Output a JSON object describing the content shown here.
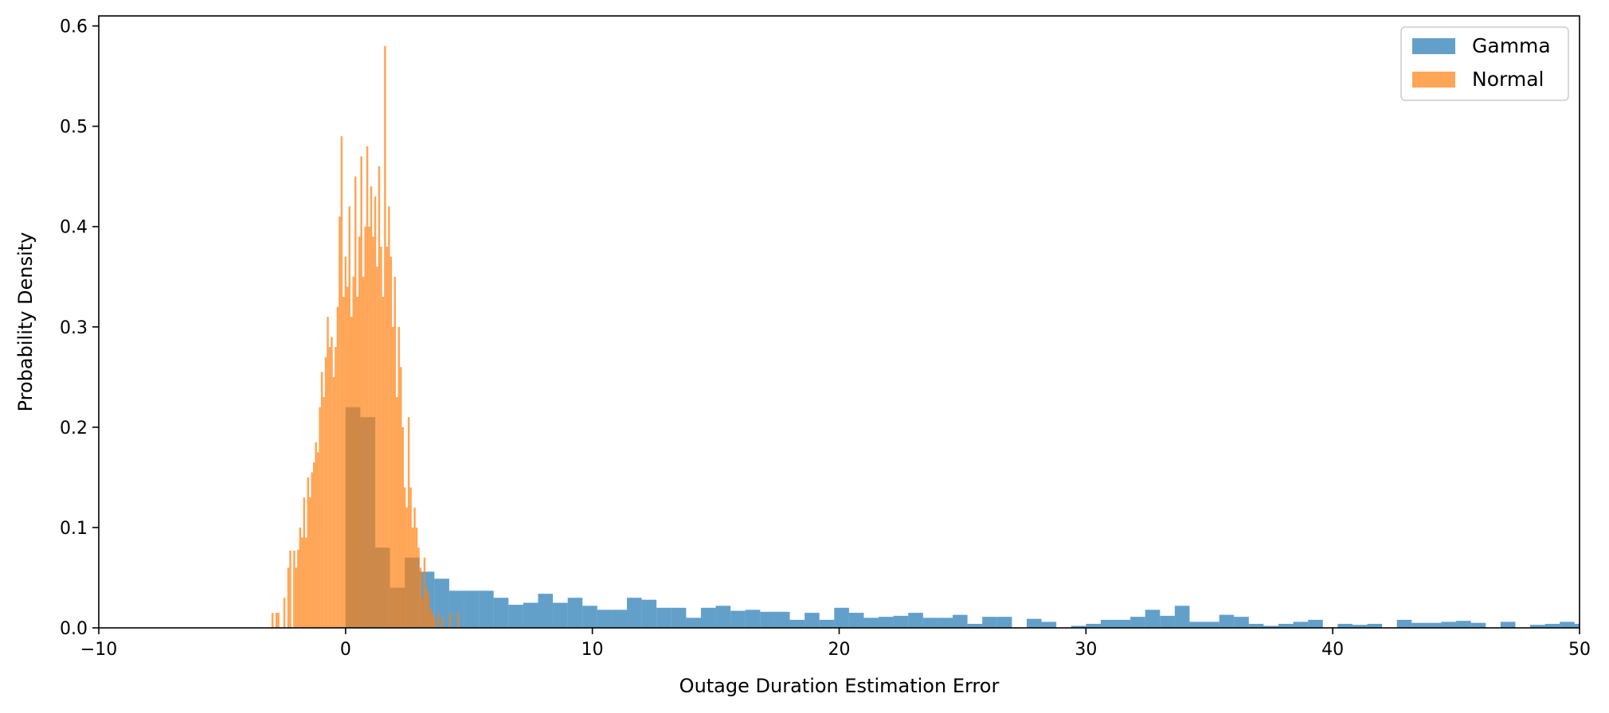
{
  "chart_data": {
    "type": "bar",
    "title": "",
    "xlabel": "Outage Duration Estimation Error",
    "ylabel": "Probability Density",
    "xlim": [
      -10,
      50
    ],
    "ylim": [
      0,
      0.61
    ],
    "xticks": [
      -10,
      0,
      10,
      20,
      30,
      40,
      50
    ],
    "xtick_labels": [
      "−10",
      "0",
      "10",
      "20",
      "30",
      "40",
      "50"
    ],
    "yticks": [
      0.0,
      0.1,
      0.2,
      0.3,
      0.4,
      0.5,
      0.6
    ],
    "ytick_labels": [
      "0.0",
      "0.1",
      "0.2",
      "0.3",
      "0.4",
      "0.5",
      "0.6"
    ],
    "grid": false,
    "legend_position": "top-right",
    "series": [
      {
        "name": "Gamma",
        "color": "#1f77b4",
        "opacity": 0.7,
        "bin_start": 0,
        "bin_width": 0.6,
        "values": [
          0.22,
          0.21,
          0.08,
          0.04,
          0.07,
          0.056,
          0.049,
          0.037,
          0.037,
          0.037,
          0.03,
          0.023,
          0.025,
          0.034,
          0.025,
          0.03,
          0.022,
          0.018,
          0.018,
          0.03,
          0.028,
          0.02,
          0.02,
          0.01,
          0.02,
          0.022,
          0.017,
          0.018,
          0.016,
          0.016,
          0.008,
          0.015,
          0.008,
          0.02,
          0.015,
          0.01,
          0.011,
          0.012,
          0.015,
          0.01,
          0.01,
          0.013,
          0.004,
          0.011,
          0.011,
          0.0,
          0.009,
          0.006,
          0.0,
          0.002,
          0.004,
          0.008,
          0.008,
          0.011,
          0.018,
          0.012,
          0.022,
          0.006,
          0.006,
          0.013,
          0.011,
          0.004,
          0.002,
          0.004,
          0.006,
          0.008,
          0.0,
          0.004,
          0.003,
          0.004,
          0.0,
          0.008,
          0.005,
          0.005,
          0.006,
          0.007,
          0.005,
          0.0,
          0.006,
          0.0,
          0.003,
          0.004,
          0.006,
          0.004,
          0.009,
          0.005,
          0.002,
          0.0,
          0.009,
          0.0,
          0.0
        ]
      },
      {
        "name": "Normal",
        "color": "#ff7f0e",
        "opacity": 0.7,
        "bin_start": -3.0,
        "bin_width": 0.08,
        "values": [
          0.015,
          0.0,
          0.015,
          0.015,
          0.0,
          0.0,
          0.03,
          0.0,
          0.06,
          0.077,
          0.0,
          0.077,
          0.06,
          0.078,
          0.1,
          0.09,
          0.13,
          0.09,
          0.15,
          0.13,
          0.155,
          0.165,
          0.185,
          0.175,
          0.22,
          0.255,
          0.23,
          0.27,
          0.31,
          0.28,
          0.29,
          0.25,
          0.28,
          0.32,
          0.41,
          0.49,
          0.33,
          0.37,
          0.34,
          0.42,
          0.31,
          0.35,
          0.45,
          0.33,
          0.39,
          0.47,
          0.35,
          0.4,
          0.48,
          0.4,
          0.44,
          0.39,
          0.43,
          0.36,
          0.46,
          0.38,
          0.33,
          0.58,
          0.38,
          0.42,
          0.37,
          0.3,
          0.35,
          0.23,
          0.3,
          0.26,
          0.2,
          0.14,
          0.12,
          0.21,
          0.14,
          0.1,
          0.12,
          0.1,
          0.08,
          0.06,
          0.03,
          0.07,
          0.04,
          0.035,
          0.02,
          0.015,
          0.01,
          0.0,
          0.015,
          0.0,
          0.01,
          0.0,
          0.0,
          0.0,
          0.015,
          0.0,
          0.0,
          0.0,
          0.015
        ]
      }
    ]
  }
}
